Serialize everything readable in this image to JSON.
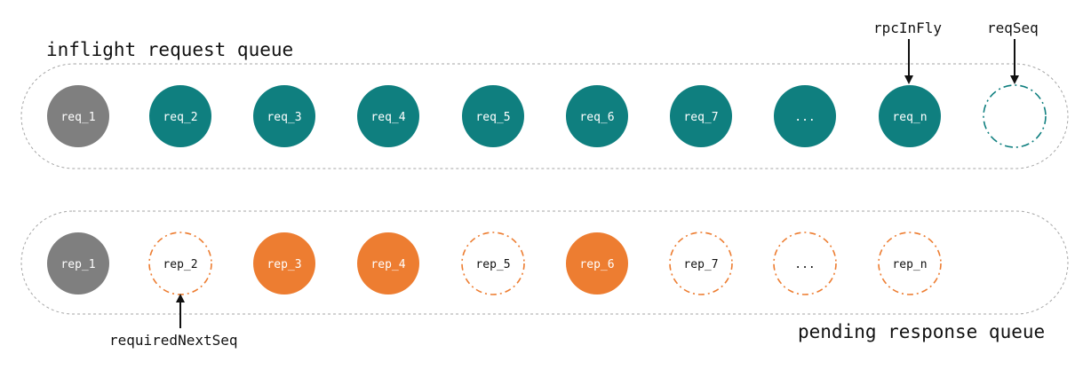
{
  "colors": {
    "gray": "#7f7f7f",
    "teal": "#0f7f7f",
    "orange": "#ed7d31",
    "outline": "#999999",
    "arrow": "#111111"
  },
  "inflight_queue": {
    "label": "inflight request queue",
    "items": [
      {
        "label": "req_1",
        "style": "gray"
      },
      {
        "label": "req_2",
        "style": "teal"
      },
      {
        "label": "req_3",
        "style": "teal"
      },
      {
        "label": "req_4",
        "style": "teal"
      },
      {
        "label": "req_5",
        "style": "teal"
      },
      {
        "label": "req_6",
        "style": "teal"
      },
      {
        "label": "req_7",
        "style": "teal"
      },
      {
        "label": "...",
        "style": "teal"
      },
      {
        "label": "req_n",
        "style": "teal"
      },
      {
        "label": "",
        "style": "teal-dashed"
      }
    ]
  },
  "pending_queue": {
    "label": "pending response queue",
    "items": [
      {
        "label": "rep_1",
        "style": "gray"
      },
      {
        "label": "rep_2",
        "style": "orange-dashed"
      },
      {
        "label": "rep_3",
        "style": "orange"
      },
      {
        "label": "rep_4",
        "style": "orange"
      },
      {
        "label": "rep_5",
        "style": "orange-dashed"
      },
      {
        "label": "rep_6",
        "style": "orange"
      },
      {
        "label": "rep_7",
        "style": "orange-dashed"
      },
      {
        "label": "...",
        "style": "orange-dashed"
      },
      {
        "label": "rep_n",
        "style": "orange-dashed"
      }
    ]
  },
  "pointers": {
    "rpcInFly": "rpcInFly",
    "reqSeq": "reqSeq",
    "requiredNextSeq": "requiredNextSeq"
  }
}
